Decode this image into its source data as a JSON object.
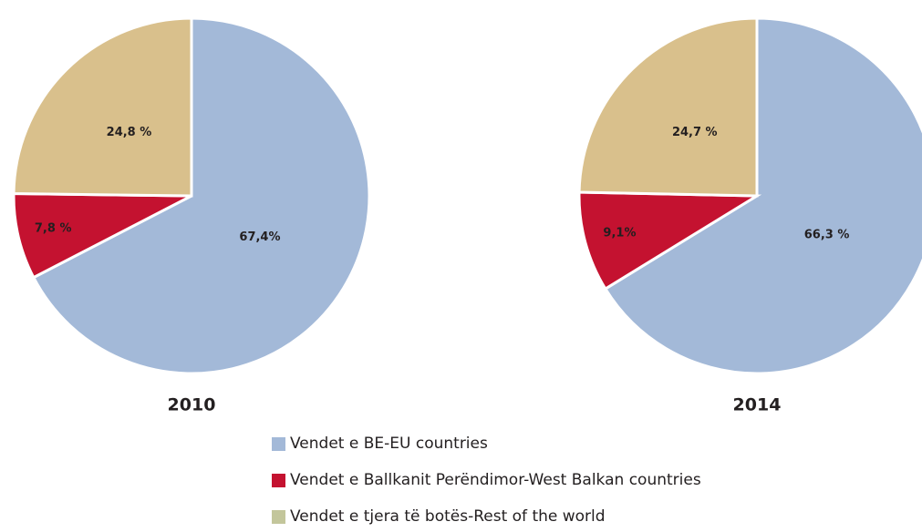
{
  "chart_data": [
    {
      "type": "pie",
      "title": "2010",
      "values": [
        67.4,
        7.8,
        24.8
      ],
      "value_labels": [
        "67,4%",
        "7,8 %",
        "24,8 %"
      ],
      "colors": [
        "#a3b9d8",
        "#c41230",
        "#d9c08c"
      ]
    },
    {
      "type": "pie",
      "title": "2014",
      "values": [
        66.3,
        9.1,
        24.7
      ],
      "value_labels": [
        "66,3 %",
        "9,1%",
        "24,7 %"
      ],
      "colors": [
        "#a3b9d8",
        "#c41230",
        "#d9c08c"
      ]
    }
  ],
  "legend": {
    "labels": [
      "Vendet e BE-EU countries",
      "Vendet e Ballkanit Perëndimor-West Balkan countries",
      "Vendet e tjera të botës-Rest of the world"
    ],
    "colors": [
      "#a3b9d8",
      "#c41230",
      "#c3c69b"
    ]
  }
}
